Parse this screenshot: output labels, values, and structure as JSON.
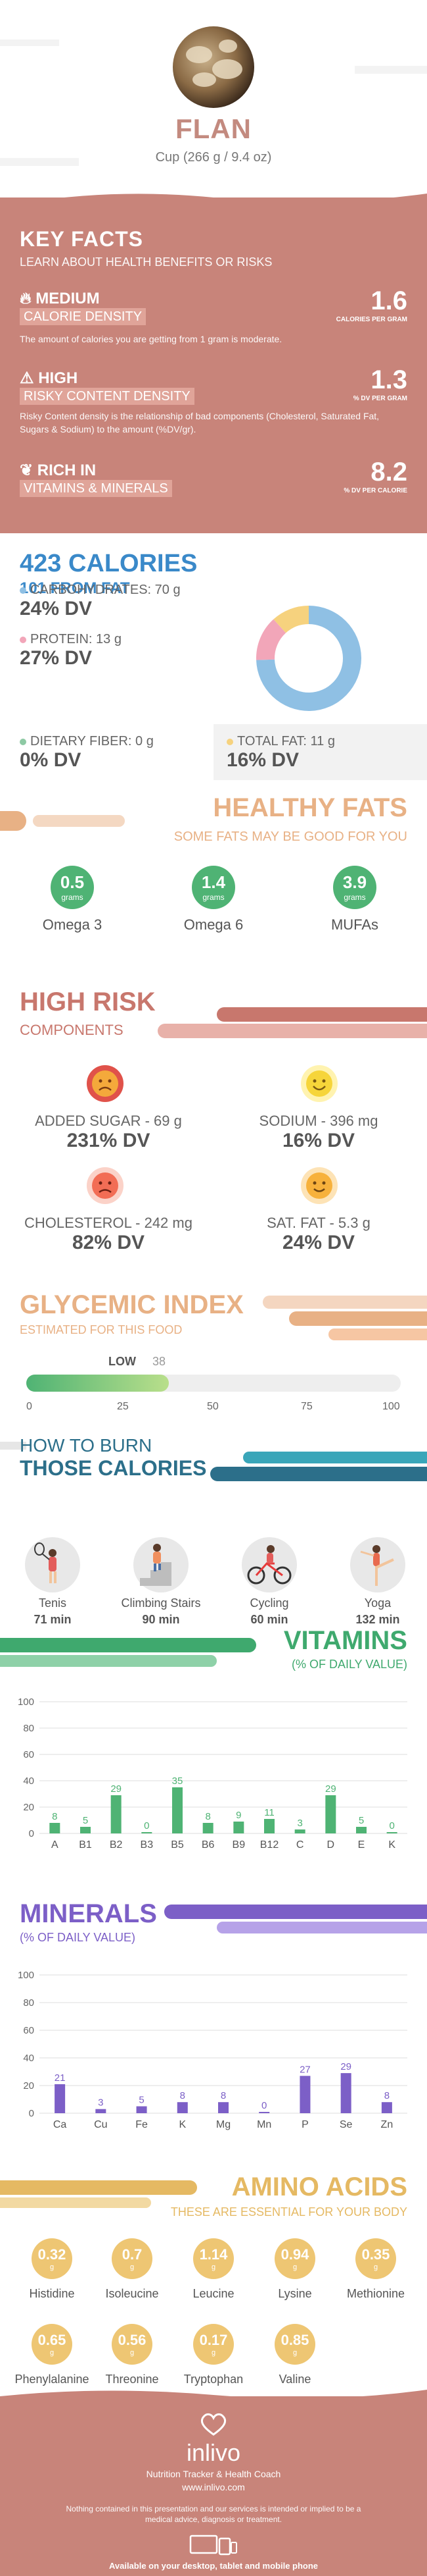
{
  "header": {
    "title": "FLAN",
    "serving": "Cup (266 g / 9.4 oz)"
  },
  "key_facts": {
    "heading": "KEY FACTS",
    "subheading": "LEARN ABOUT HEALTH BENEFITS OR RISKS",
    "facts": [
      {
        "level": "MEDIUM",
        "name": "CALORIE DENSITY",
        "value": "1.6",
        "unit": "CALORIES PER GRAM",
        "desc": "The amount of calories you are getting from 1 gram is moderate.",
        "icon": "flame-icon"
      },
      {
        "level": "HIGH",
        "name": "RISKY CONTENT DENSITY",
        "value": "1.3",
        "unit": "% DV PER GRAM",
        "desc": "Risky Content density is the relationship of bad components (Cholesterol, Saturated Fat, Sugars & Sodium) to the amount (%DV/gr).",
        "icon": "warning-icon"
      },
      {
        "level": "RICH  IN",
        "name": "VITAMINS & MINERALS",
        "value": "8.2",
        "unit": "% DV PER CALORIE",
        "desc": "",
        "icon": "leaf-icon"
      }
    ]
  },
  "calories": {
    "heading": "423 CALORIES",
    "from_fat": "101 FROM FAT",
    "macros": [
      {
        "label": "CARBOHYDRATES: 70 g",
        "dv": "24% DV",
        "color": "#8fc0e4"
      },
      {
        "label": "PROTEIN: 13 g",
        "dv": "27% DV",
        "color": "#f2a6b9"
      },
      {
        "label": "DIETARY FIBER: 0 g",
        "dv": "0% DV",
        "color": "#8dc9a4"
      },
      {
        "label": "TOTAL FAT: 11 g",
        "dv": "16% DV",
        "color": "#f6d27e"
      }
    ],
    "donut": [
      {
        "name": "carbohydrates",
        "value": 70,
        "color": "#8fc0e4"
      },
      {
        "name": "protein",
        "value": 13,
        "color": "#f2a6b9"
      },
      {
        "name": "fat",
        "value": 11,
        "color": "#f6d27e"
      }
    ]
  },
  "healthy_fats": {
    "heading": "HEALTHY FATS",
    "subheading": "SOME FATS MAY BE GOOD FOR YOU",
    "items": [
      {
        "value": "0.5",
        "unit": "grams",
        "name": "Omega 3"
      },
      {
        "value": "1.4",
        "unit": "grams",
        "name": "Omega 6"
      },
      {
        "value": "3.9",
        "unit": "grams",
        "name": "MUFAs"
      }
    ]
  },
  "high_risk": {
    "heading": "HIGH RISK",
    "subheading": "COMPONENTS",
    "items": [
      {
        "label": "ADDED SUGAR - 69 g",
        "dv": "231% DV",
        "face": "very-unhappy-face-icon",
        "color": "#e0524a"
      },
      {
        "label": "SODIUM - 396 mg",
        "dv": "16% DV",
        "face": "happy-face-icon",
        "color": "#f6d53a"
      },
      {
        "label": "CHOLESTEROL - 242 mg",
        "dv": "82% DV",
        "face": "sad-face-icon",
        "color": "#f26d55"
      },
      {
        "label": "SAT. FAT - 5.3 g",
        "dv": "24% DV",
        "face": "smiling-face-icon",
        "color": "#f7b13c"
      }
    ]
  },
  "glycemic": {
    "heading": "GLYCEMIC INDEX",
    "subheading": "ESTIMATED FOR THIS FOOD",
    "level": "LOW",
    "value": 38,
    "value_text": "38",
    "ticks": [
      "0",
      "25",
      "50",
      "75",
      "100"
    ]
  },
  "burn": {
    "heading1": "HOW TO BURN",
    "heading2": "THOSE CALORIES",
    "activities": [
      {
        "name": "Tenis",
        "minutes": "71 min",
        "icon": "tennis-player-icon"
      },
      {
        "name": "Climbing Stairs",
        "minutes": "90 min",
        "icon": "stairs-climber-icon"
      },
      {
        "name": "Cycling",
        "minutes": "60 min",
        "icon": "cyclist-icon"
      },
      {
        "name": "Yoga",
        "minutes": "132 min",
        "icon": "yoga-pose-icon"
      }
    ]
  },
  "vitamins": {
    "heading": "VITAMINS",
    "subheading": "(% OF DAILY VALUE)",
    "chart_data": {
      "type": "bar",
      "categories": [
        "A",
        "B1",
        "B2",
        "B3",
        "B5",
        "B6",
        "B9",
        "B12",
        "C",
        "D",
        "E",
        "K"
      ],
      "values": [
        8,
        5,
        29,
        0,
        35,
        8,
        9,
        11,
        3,
        29,
        5,
        0
      ],
      "ylim": [
        0,
        100
      ],
      "yticks": [
        "0",
        "20",
        "40",
        "60",
        "80",
        "100"
      ],
      "color": "#4fb374"
    }
  },
  "minerals": {
    "heading": "MINERALS",
    "subheading": "(% OF DAILY VALUE)",
    "chart_data": {
      "type": "bar",
      "categories": [
        "Ca",
        "Cu",
        "Fe",
        "K",
        "Mg",
        "Mn",
        "P",
        "Se",
        "Zn"
      ],
      "values": [
        21,
        3,
        5,
        8,
        8,
        0,
        27,
        29,
        8
      ],
      "ylim": [
        0,
        100
      ],
      "yticks": [
        "0",
        "20",
        "40",
        "60",
        "80",
        "100"
      ],
      "color": "#7c5fc7"
    }
  },
  "amino": {
    "heading": "AMINO ACIDS",
    "subheading": "THESE ARE ESSENTIAL FOR YOUR BODY",
    "items": [
      {
        "value": "0.32",
        "unit": "g",
        "name": "Histidine"
      },
      {
        "value": "0.7",
        "unit": "g",
        "name": "Isoleucine"
      },
      {
        "value": "1.14",
        "unit": "g",
        "name": "Leucine"
      },
      {
        "value": "0.94",
        "unit": "g",
        "name": "Lysine"
      },
      {
        "value": "0.35",
        "unit": "g",
        "name": "Methionine"
      },
      {
        "value": "0.65",
        "unit": "g",
        "name": "Phenylalanine"
      },
      {
        "value": "0.56",
        "unit": "g",
        "name": "Threonine"
      },
      {
        "value": "0.17",
        "unit": "g",
        "name": "Tryptophan"
      },
      {
        "value": "0.85",
        "unit": "g",
        "name": "Valine"
      }
    ]
  },
  "footer": {
    "brand": "inlivo",
    "tagline": "Nutrition Tracker & Health Coach",
    "url": "www.inlivo.com",
    "disclaimer": "Nothing contained in this presentation and our services is intended or implied to be a medical advice, diagnosis or treatment.",
    "available": "Available on your desktop, tablet and mobile phone"
  }
}
